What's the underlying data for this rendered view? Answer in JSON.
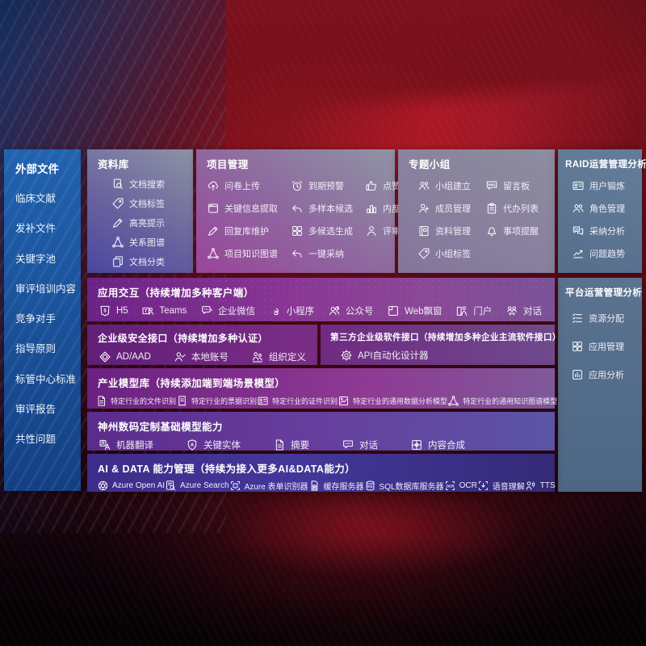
{
  "colors": {
    "sidebar_blue": "#1e549e",
    "panel_purple": "#7b2d8e",
    "panel_slate": "#5d7693",
    "deep_indigo": "#3e2c89",
    "background_red": "#6f0f1a",
    "text": "#ffffff"
  },
  "sidebar": {
    "title": "外部文件",
    "items": [
      "临床文献",
      "发补文件",
      "关键字池",
      "审评培训内容",
      "竞争对手",
      "指导原则",
      "标管中心标准",
      "审评报告",
      "共性问题"
    ]
  },
  "panels": {
    "library": {
      "title": "资料库",
      "items": [
        {
          "label": "文档搜索",
          "icon": "doc-search"
        },
        {
          "label": "文档标签",
          "icon": "tag"
        },
        {
          "label": "高亮提示",
          "icon": "pen"
        },
        {
          "label": "关系图谱",
          "icon": "network"
        },
        {
          "label": "文档分类",
          "icon": "docs"
        }
      ]
    },
    "project": {
      "title": "项目管理",
      "items": [
        {
          "label": "问卷上传",
          "icon": "cloud-upload"
        },
        {
          "label": "到期预警",
          "icon": "alarm"
        },
        {
          "label": "点赞感谢",
          "icon": "thumbs-up"
        },
        {
          "label": "关键信息提取",
          "icon": "browser"
        },
        {
          "label": "多样本候选",
          "icon": "reply-arrow"
        },
        {
          "label": "内部专家排名",
          "icon": "rank"
        },
        {
          "label": "回复库维护",
          "icon": "pen"
        },
        {
          "label": "多候选生成",
          "icon": "grid"
        },
        {
          "label": "评审员画像",
          "icon": "person"
        },
        {
          "label": "项目知识图谱",
          "icon": "network"
        },
        {
          "label": "一键采纳",
          "icon": "reply-arrow"
        }
      ]
    },
    "groups": {
      "title": "专题小组",
      "items": [
        {
          "label": "小组建立",
          "icon": "people"
        },
        {
          "label": "留言板",
          "icon": "bbs"
        },
        {
          "label": "成员管理",
          "icon": "person-add"
        },
        {
          "label": "代办列表",
          "icon": "clipboard"
        },
        {
          "label": "资料管理",
          "icon": "archive"
        },
        {
          "label": "事项提醒",
          "icon": "bell"
        },
        {
          "label": "小组标签",
          "icon": "tag"
        }
      ]
    },
    "raid": {
      "title": "RAID运营管理分析",
      "items": [
        {
          "label": "用户锻炼",
          "icon": "id-card"
        },
        {
          "label": "角色管理",
          "icon": "people"
        },
        {
          "label": "采纳分析",
          "icon": "chat-qa"
        },
        {
          "label": "问题趋势",
          "icon": "trend"
        }
      ]
    },
    "platform": {
      "title": "平台运营管理分析",
      "items": [
        {
          "label": "资源分配",
          "icon": "list-check"
        },
        {
          "label": "应用管理",
          "icon": "grid"
        },
        {
          "label": "应用分析",
          "icon": "chart-doc"
        }
      ]
    },
    "interaction": {
      "title": "应用交互（持续增加多种客户端）",
      "items": [
        {
          "label": "H5",
          "icon": "h5"
        },
        {
          "label": "Teams",
          "icon": "teams"
        },
        {
          "label": "企业微信",
          "icon": "wechat"
        },
        {
          "label": "小程序",
          "icon": "miniprogram"
        },
        {
          "label": "公众号",
          "icon": "official-account"
        },
        {
          "label": "Web飘窗",
          "icon": "web-window"
        },
        {
          "label": "门户",
          "icon": "portal"
        },
        {
          "label": "对话",
          "icon": "dialog"
        }
      ]
    },
    "security": {
      "title": "企业级安全接口（持续增加多种认证）",
      "items": [
        {
          "label": "AD/AAD",
          "icon": "diamond"
        },
        {
          "label": "本地账号",
          "icon": "person-check"
        },
        {
          "label": "组织定义",
          "icon": "people-org"
        }
      ]
    },
    "thirdparty": {
      "title": "第三方企业级软件接口（持续增加多种企业主流软件接口）",
      "items": [
        {
          "label": "API自动化设计器",
          "icon": "gear"
        }
      ]
    },
    "models": {
      "title": "产业模型库（持续添加端到端场景模型）",
      "items": [
        {
          "label": "特定行业的文件识别",
          "icon": "summary-doc"
        },
        {
          "label": "特定行业的票据识别",
          "icon": "receipt"
        },
        {
          "label": "特定行业的证件识别",
          "icon": "id-card"
        },
        {
          "label": "特定行业的通用数据分析模型",
          "icon": "image-chart"
        },
        {
          "label": "特定行业的通用知识图谱模型",
          "icon": "network"
        }
      ]
    },
    "foundation": {
      "title": "神州数码定制基础模型能力",
      "items": [
        {
          "label": "机器翻译",
          "icon": "translate"
        },
        {
          "label": "关键实体",
          "icon": "shield-a"
        },
        {
          "label": "摘要",
          "icon": "summary-doc"
        },
        {
          "label": "对话",
          "icon": "chat-dots"
        },
        {
          "label": "内容合成",
          "icon": "content-grid"
        }
      ]
    },
    "aidata": {
      "title": "AI & DATA 能力管理（持续为接入更多AI&DATA能力）",
      "items": [
        {
          "label": "Azure Open AI",
          "icon": "openai"
        },
        {
          "label": "Azure Search",
          "icon": "azure-search"
        },
        {
          "label": "Azure 表单识别器",
          "icon": "form-recognizer"
        },
        {
          "label": "缓存服务器",
          "icon": "cache-server"
        },
        {
          "label": "SQL数据库服务器",
          "icon": "sql-db"
        },
        {
          "label": "OCR",
          "icon": "ocr"
        },
        {
          "label": "语音理解",
          "icon": "speech"
        },
        {
          "label": "TTS",
          "icon": "tts"
        }
      ]
    }
  }
}
